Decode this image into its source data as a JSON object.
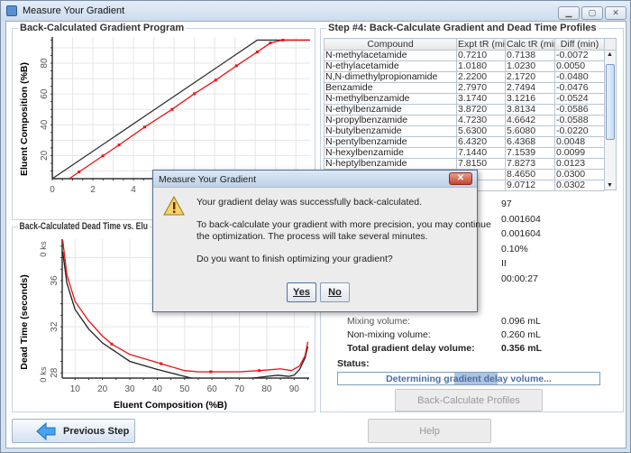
{
  "window": {
    "title": "Measure Your Gradient",
    "controls": [
      "minimize",
      "maximize",
      "close"
    ]
  },
  "gradient_chart": {
    "title": "Back-Calculated Gradient Program",
    "ylabel": "Eluent Composition (%B)",
    "xticks": [
      "0",
      "2",
      "4"
    ],
    "yticks": [
      "20",
      "40",
      "60",
      "80"
    ]
  },
  "deadtime_chart": {
    "title": "Back-Calculated Dead Time vs. Elu",
    "ylabel": "Dead Time (seconds)",
    "xlabel": "Eluent Composition (%B)",
    "xticks": [
      "10",
      "20",
      "30",
      "40",
      "50",
      "60",
      "70",
      "80",
      "90"
    ],
    "yticks": [
      "28",
      "32",
      "36"
    ],
    "ks_top": "0 ks",
    "ks_bottom": "0 ks"
  },
  "chart_data": [
    {
      "type": "line",
      "title": "Back-Calculated Gradient Program",
      "ylabel": "Eluent Composition (%B)",
      "xlim": [
        0,
        12.7
      ],
      "ylim": [
        5,
        97
      ],
      "grid": true,
      "series": [
        {
          "color": "#333333",
          "x": [
            0,
            10.1,
            12.7
          ],
          "y": [
            5,
            95,
            95
          ]
        },
        {
          "color": "#ee1111",
          "markers": true,
          "x": [
            0.84,
            1.32,
            2.49,
            3.29,
            4.55,
            5.9,
            7.0,
            8.05,
            9.07,
            10.1,
            10.74,
            11.36,
            12.7
          ],
          "y": [
            5,
            9.4,
            19.8,
            26.9,
            38.5,
            50,
            60.2,
            69,
            78.3,
            87.3,
            93.1,
            95,
            95
          ],
          "marker_x": [
            1.32,
            2.49,
            3.29,
            4.55,
            5.9,
            7.0,
            8.05,
            9.07,
            10.1,
            10.74,
            11.36
          ]
        }
      ]
    },
    {
      "type": "line",
      "title": "Back-Calculated Dead Time vs. Elu",
      "xlabel": "Eluent Composition (%B)",
      "ylabel": "Dead Time (seconds)",
      "xlim": [
        5.3,
        95.5
      ],
      "ylim": [
        27.55,
        39.6
      ],
      "grid": true,
      "series": [
        {
          "color": "#222222",
          "x": [
            5.5,
            7,
            10,
            15,
            20,
            30,
            40,
            50,
            55,
            60,
            70,
            75,
            80,
            84,
            88,
            90,
            92,
            94,
            95
          ],
          "y": [
            38.5,
            35.8,
            33.5,
            31.8,
            30.6,
            29,
            28.3,
            27.7,
            27.4,
            27.3,
            27.3,
            27.55,
            27.7,
            27.8,
            27.7,
            27.8,
            28.3,
            29.3,
            30.3
          ]
        },
        {
          "color": "#ee1111",
          "markers": true,
          "x": [
            5.5,
            7,
            10,
            15,
            20,
            23.4,
            30,
            41.4,
            50,
            55,
            59.6,
            70,
            77.3,
            80,
            85,
            89,
            92,
            94,
            95
          ],
          "y": [
            39.5,
            36.5,
            34.2,
            32.5,
            31.2,
            30.5,
            29.6,
            28.8,
            28.2,
            28.1,
            28.1,
            28.1,
            28.2,
            28.25,
            28.35,
            28.2,
            28.6,
            29.5,
            30.7
          ],
          "marker_x": [
            23.4,
            41.4,
            59.6,
            77.3
          ]
        }
      ]
    }
  ],
  "step4": {
    "title": "Step #4: Back-Calculate Gradient and Dead Time Profiles",
    "columns": [
      "Compound",
      "Expt tR (min)",
      "Calc tR (min)",
      "Diff (min)"
    ],
    "rows": [
      [
        "N-methylacetamide",
        "0.7210",
        "0.7138",
        "-0.0072"
      ],
      [
        "N-ethylacetamide",
        "1.0180",
        "1.0230",
        "0.0050"
      ],
      [
        "N,N-dimethylpropionamide",
        "2.2200",
        "2.1720",
        "-0.0480"
      ],
      [
        "Benzamide",
        "2.7970",
        "2.7494",
        "-0.0476"
      ],
      [
        "N-methylbenzamide",
        "3.1740",
        "3.1216",
        "-0.0524"
      ],
      [
        "N-ethylbenzamide",
        "3.8720",
        "3.8134",
        "-0.0586"
      ],
      [
        "N-propylbenzamide",
        "4.7230",
        "4.6642",
        "-0.0588"
      ],
      [
        "N-butylbenzamide",
        "5.6300",
        "5.6080",
        "-0.0220"
      ],
      [
        "N-pentylbenzamide",
        "6.4320",
        "6.4368",
        "0.0048"
      ],
      [
        "N-hexylbenzamide",
        "7.1440",
        "7.1539",
        "0.0099"
      ],
      [
        "N-heptylbenzamide",
        "7.8150",
        "7.8273",
        "0.0123"
      ],
      [
        "",
        "",
        "8.4650",
        "0.0300"
      ],
      [
        "",
        "",
        "9.0712",
        "0.0302"
      ]
    ],
    "values": [
      "97",
      "0.001604",
      "0.001604",
      "0.10%",
      "II",
      "00:00:27"
    ],
    "volumes": [
      {
        "label": "Mixing volume:",
        "value": "0.096 mL"
      },
      {
        "label": "Non-mixing volume:",
        "value": "0.260 mL"
      },
      {
        "label": "Total gradient delay volume:",
        "value": "0.356 mL"
      }
    ],
    "status_label": "Status:",
    "status_text": "Determining gradient delay volume...",
    "back_calc_button": "Back-Calculate Profiles"
  },
  "footer": {
    "previous_button": "Previous Step",
    "help_button": "Help"
  },
  "dialog": {
    "title": "Measure Your Gradient",
    "line1": "Your gradient delay was successfully back-calculated.",
    "line2": "To back-calculate your gradient with more precision, you may continue",
    "line3": "the optimization. The process will take several minutes.",
    "line4": "Do you want to finish optimizing your gradient?",
    "yes": "Yes",
    "no": "No",
    "icon": "warning-icon"
  }
}
